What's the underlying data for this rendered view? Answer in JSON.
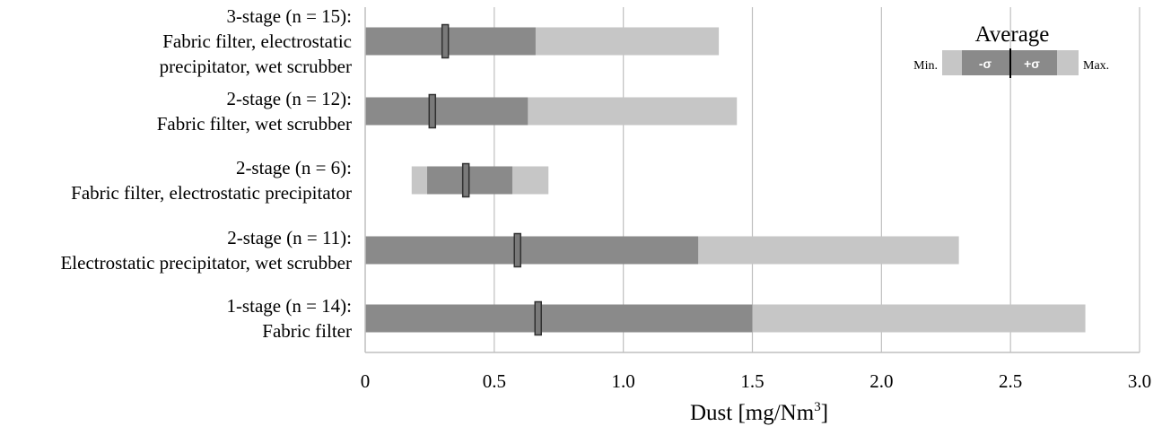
{
  "chart_data": {
    "type": "range-bar",
    "xlabel": "Dust [mg/Nm",
    "xlabel_sup": "3",
    "xlabel_tail": "]",
    "xlim": [
      0,
      3.0
    ],
    "xticks": [
      "0",
      "0.5",
      "1.0",
      "1.5",
      "2.0",
      "2.5",
      "3.0"
    ],
    "grid": "vertical",
    "colors": {
      "dark": "#8a8a8a",
      "light": "#c6c6c6",
      "grid": "#bfbfbf",
      "marker": "#7a7a7a"
    },
    "categories": [
      {
        "lines": [
          "3-stage (n = 15):",
          "Fabric filter, electrostatic",
          "precipitator,  wet scrubber"
        ],
        "min": 0,
        "dark_lo": 0,
        "dark_hi": 0.66,
        "max": 1.37,
        "avg": 0.31
      },
      {
        "lines": [
          "2-stage (n = 12):",
          "Fabric filter, wet scrubber"
        ],
        "min": 0,
        "dark_lo": 0,
        "dark_hi": 0.63,
        "max": 1.44,
        "avg": 0.26
      },
      {
        "lines": [
          "2-stage (n = 6):",
          "Fabric filter, electrostatic precipitator"
        ],
        "min": 0.18,
        "dark_lo": 0.24,
        "dark_hi": 0.57,
        "max": 0.71,
        "avg": 0.39
      },
      {
        "lines": [
          "2-stage (n = 11):",
          "Electrostatic precipitator, wet scrubber"
        ],
        "min": 0,
        "dark_lo": 0,
        "dark_hi": 1.29,
        "max": 2.3,
        "avg": 0.59
      },
      {
        "lines": [
          "1-stage (n = 14):",
          "Fabric filter"
        ],
        "min": 0,
        "dark_lo": 0,
        "dark_hi": 1.5,
        "max": 2.79,
        "avg": 0.67
      }
    ],
    "legend": {
      "title": "Average",
      "min": "Min.",
      "max": "Max.",
      "minus_sigma": "-σ",
      "plus_sigma": "+σ",
      "position": "top-right"
    }
  }
}
